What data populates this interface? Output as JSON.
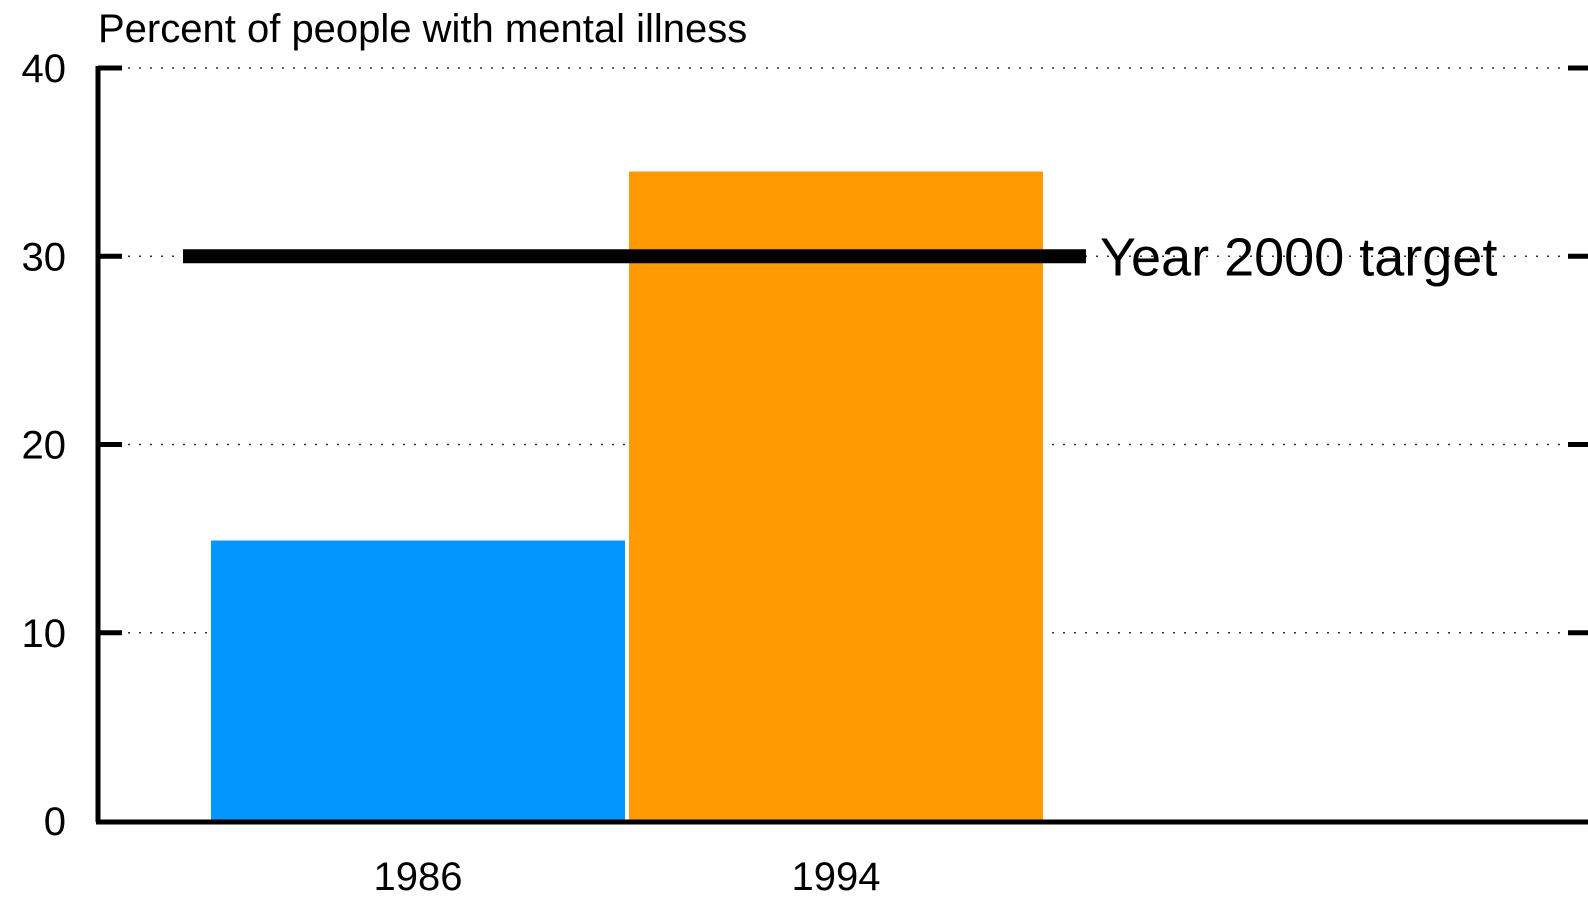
{
  "chart_data": {
    "type": "bar",
    "title": "Percent of people with mental illness",
    "xlabel": "",
    "ylabel": "",
    "categories": [
      "1986",
      "1994"
    ],
    "values": [
      14.9,
      34.5
    ],
    "bar_colors": [
      "#0396FF",
      "#FF9902"
    ],
    "ylim": [
      0,
      40
    ],
    "yticks": [
      0,
      10,
      20,
      30,
      40
    ],
    "grid": true,
    "reference_line": {
      "label": "Year 2000 target",
      "value": 30,
      "color": "#000000"
    }
  }
}
